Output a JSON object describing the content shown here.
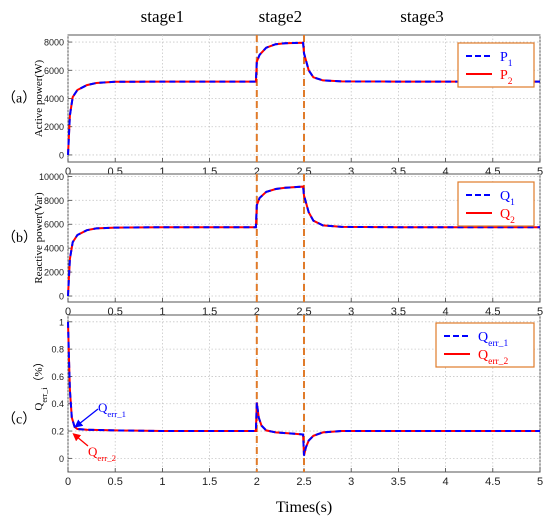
{
  "chart_data": {
    "type": "line",
    "stage_labels": [
      "stage1",
      "stage2",
      "stage3"
    ],
    "stage_bounds": [
      2,
      2.5
    ],
    "xlabel": "Times(s)",
    "xlim": [
      0,
      5
    ],
    "xticks": [
      "0",
      "0.5",
      "1",
      "1.5",
      "2",
      "2.5",
      "3",
      "3.5",
      "4",
      "4.5",
      "5"
    ],
    "colors": {
      "series1": "#0000ff",
      "series2": "#ff0000",
      "stage_line": "#e07b2a",
      "legend_border": "#e07b2a"
    },
    "panels": [
      {
        "tag": "（a）",
        "ylabel": "Active power(W)",
        "ylim": [
          -500,
          8500
        ],
        "yticks": [
          "0",
          "2000",
          "4000",
          "6000",
          "8000"
        ],
        "legend": {
          "position": "top-right",
          "entries": [
            {
              "base": "P",
              "sub": "1"
            },
            {
              "base": "P",
              "sub": "2"
            }
          ]
        },
        "series": [
          {
            "x": [
              0,
              0.02,
              0.05,
              0.1,
              0.2,
              0.3,
              0.5,
              1.0,
              1.5,
              1.99,
              2.0,
              2.03,
              2.1,
              2.2,
              2.3,
              2.49,
              2.5,
              2.55,
              2.6,
              2.7,
              2.9,
              3.5,
              4.0,
              5.0
            ],
            "y": [
              0,
              2800,
              4100,
              4600,
              4950,
              5100,
              5180,
              5200,
              5200,
              5200,
              6600,
              7100,
              7600,
              7850,
              7920,
              7950,
              7200,
              6000,
              5500,
              5280,
              5210,
              5200,
              5200,
              5200
            ]
          }
        ]
      },
      {
        "tag": "（b）",
        "ylabel": "Reactive power(Var)",
        "ylim": [
          -500,
          10200
        ],
        "yticks": [
          "0",
          "2000",
          "4000",
          "6000",
          "8000",
          "10000"
        ],
        "legend": {
          "position": "top-right",
          "entries": [
            {
              "base": "Q",
              "sub": "1"
            },
            {
              "base": "Q",
              "sub": "2"
            }
          ]
        },
        "series": [
          {
            "x": [
              0,
              0.02,
              0.05,
              0.1,
              0.2,
              0.3,
              0.5,
              1.0,
              1.5,
              1.99,
              2.0,
              2.03,
              2.1,
              2.2,
              2.3,
              2.49,
              2.5,
              2.55,
              2.6,
              2.7,
              2.9,
              3.5,
              4.0,
              5.0
            ],
            "y": [
              0,
              3100,
              4500,
              5100,
              5500,
              5650,
              5720,
              5750,
              5750,
              5750,
              7600,
              8200,
              8700,
              8950,
              9050,
              9150,
              8400,
              7000,
              6300,
              5900,
              5780,
              5750,
              5750,
              5750
            ]
          }
        ]
      },
      {
        "tag": "（c）",
        "ylabel": "Q",
        "ylabel_sub": "err_i",
        "ylabel_suffix": "（%）",
        "ylim": [
          -0.1,
          1.05
        ],
        "yticks": [
          "0",
          "0.2",
          "0.4",
          "0.6",
          "0.8",
          "1"
        ],
        "legend": {
          "position": "top-right",
          "entries": [
            {
              "base": "Q",
              "sub": "err_1"
            },
            {
              "base": "Q",
              "sub": "err_2"
            }
          ]
        },
        "annotations": [
          {
            "base": "Q",
            "sub": "err_1"
          },
          {
            "base": "Q",
            "sub": "err_2"
          }
        ],
        "series": [
          {
            "x": [
              0,
              0.01,
              0.02,
              0.04,
              0.07,
              0.1,
              0.2,
              0.5,
              1.0,
              1.5,
              1.99,
              2.0,
              2.02,
              2.05,
              2.1,
              2.2,
              2.4,
              2.49,
              2.5,
              2.52,
              2.55,
              2.6,
              2.7,
              2.9,
              3.5,
              5.0
            ],
            "y": [
              1.0,
              0.75,
              0.5,
              0.3,
              0.23,
              0.215,
              0.21,
              0.205,
              0.2,
              0.2,
              0.2,
              0.41,
              0.3,
              0.24,
              0.205,
              0.19,
              0.18,
              0.175,
              0.02,
              0.08,
              0.13,
              0.165,
              0.19,
              0.2,
              0.2,
              0.2
            ]
          }
        ]
      }
    ]
  }
}
